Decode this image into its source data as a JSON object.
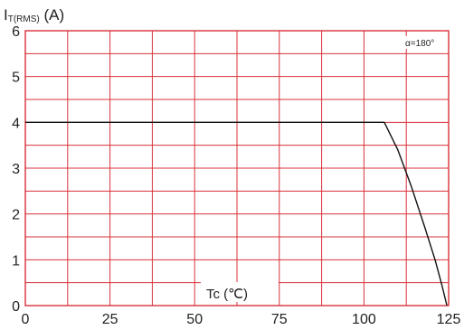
{
  "chart_data": {
    "type": "line",
    "ylabel": {
      "main": "I",
      "sub": "T(RMS)",
      "unit": " (A)"
    },
    "xlabel": "Tc (℃)",
    "annotation": "α=180°",
    "x_ticks": [
      "0",
      "25",
      "50",
      "75",
      "100",
      "125"
    ],
    "y_ticks": [
      "0",
      "1",
      "2",
      "3",
      "4",
      "5",
      "6"
    ],
    "xlim": [
      0,
      125
    ],
    "ylim": [
      0,
      6
    ],
    "grid": true,
    "grid_color": "#d9313a",
    "line_color": "#111111",
    "series": [
      {
        "x": [
          0,
          106,
          110,
          114,
          118,
          121,
          123,
          124.5
        ],
        "y": [
          4,
          4,
          3.4,
          2.6,
          1.7,
          1.0,
          0.45,
          0
        ]
      }
    ]
  }
}
